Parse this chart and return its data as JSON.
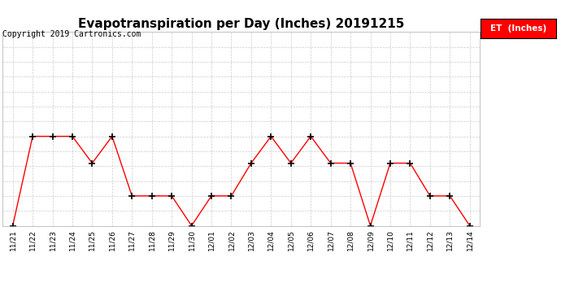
{
  "title": "Evapotranspiration per Day (Inches) 20191215",
  "copyright": "Copyright 2019 Cartronics.com",
  "legend_label": "ET  (Inches)",
  "x_labels": [
    "11/21",
    "11/22",
    "11/23",
    "11/24",
    "11/25",
    "11/26",
    "11/27",
    "11/28",
    "11/29",
    "11/30",
    "12/01",
    "12/02",
    "12/03",
    "12/04",
    "12/05",
    "12/06",
    "12/07",
    "12/08",
    "12/09",
    "12/10",
    "12/11",
    "12/12",
    "12/13",
    "12/14"
  ],
  "y_values": [
    0.0,
    0.03,
    0.03,
    0.03,
    0.021,
    0.03,
    0.01,
    0.01,
    0.01,
    0.0,
    0.01,
    0.01,
    0.021,
    0.03,
    0.021,
    0.03,
    0.021,
    0.021,
    0.0,
    0.021,
    0.021,
    0.01,
    0.01,
    0.0
  ],
  "line_color": "#ff0000",
  "marker": "+",
  "marker_color": "#000000",
  "ylim": [
    0.0,
    0.065
  ],
  "yticks": [
    0.0,
    0.005,
    0.01,
    0.015,
    0.02,
    0.025,
    0.03,
    0.035,
    0.04,
    0.045,
    0.05,
    0.055,
    0.06
  ],
  "bg_color": "#ffffff",
  "grid_color": "#cccccc",
  "title_fontsize": 11,
  "copyright_fontsize": 7,
  "legend_bg": "#ff0000",
  "legend_text_color": "#ffffff",
  "legend_fontsize": 7.5
}
